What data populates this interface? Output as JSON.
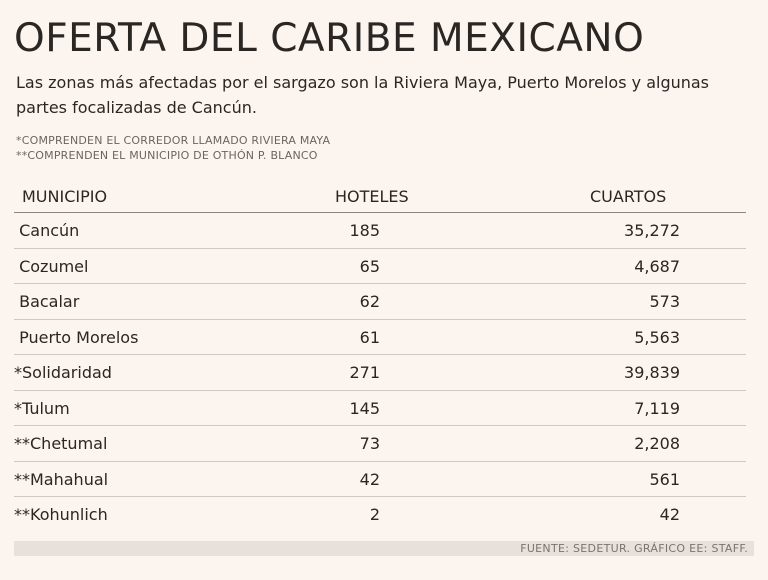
{
  "title": "OFERTA DEL CARIBE MEXICANO",
  "subtitle": "Las zonas más afectadas por el sargazo son la Riviera Maya, Puerto Morelos y algunas partes focalizadas de Cancún.",
  "notes": [
    "*COMPRENDEN EL CORREDOR LLAMADO RIVIERA MAYA",
    "**COMPRENDEN EL MUNICIPIO DE OTHÓN P. BLANCO"
  ],
  "table": {
    "headers": [
      "MUNICIPIO",
      "HOTELES",
      "CUARTOS"
    ],
    "rows": [
      {
        "municipio": " Cancún",
        "hoteles": "185",
        "cuartos": "35,272"
      },
      {
        "municipio": " Cozumel",
        "hoteles": "65",
        "cuartos": "4,687"
      },
      {
        "municipio": " Bacalar",
        "hoteles": "62",
        "cuartos": "573"
      },
      {
        "municipio": " Puerto Morelos",
        "hoteles": "61",
        "cuartos": "5,563"
      },
      {
        "municipio": "*Solidaridad",
        "hoteles": "271",
        "cuartos": "39,839"
      },
      {
        "municipio": "*Tulum",
        "hoteles": "145",
        "cuartos": "7,119"
      },
      {
        "municipio": "**Chetumal",
        "hoteles": "73",
        "cuartos": "2,208"
      },
      {
        "municipio": "**Mahahual",
        "hoteles": "42",
        "cuartos": "561"
      },
      {
        "municipio": "**Kohunlich",
        "hoteles": "2",
        "cuartos": "42"
      }
    ]
  },
  "footer": "FUENTE: SEDETUR. GRÁFICO EE: STAFF."
}
